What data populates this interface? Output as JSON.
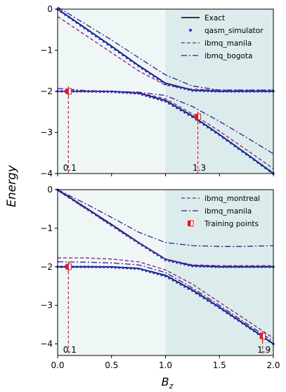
{
  "figure": {
    "ylabel": "Energy",
    "xlabel_base": "B",
    "xlabel_sub": "z"
  },
  "chart_data": [
    {
      "type": "line",
      "panel": "top",
      "xlim": [
        0.0,
        2.0
      ],
      "ylim": [
        -4,
        0
      ],
      "xticks": [
        "0.0",
        "0.5",
        "1.0",
        "1.5",
        "2.0"
      ],
      "yticks": [
        "0",
        "−1",
        "−2",
        "−3",
        "−4"
      ],
      "tick_values_y": [
        0,
        -1,
        -2,
        -3,
        -4
      ],
      "tick_values_x": [
        0.0,
        0.5,
        1.0,
        1.5,
        2.0
      ],
      "shaded_regions": [
        {
          "x": [
            0.0,
            1.0
          ],
          "color": "#eef6f6"
        },
        {
          "x": [
            1.0,
            2.0
          ],
          "color": "#dcecec"
        }
      ],
      "legend": {
        "placement": "top-right",
        "entries": [
          {
            "label": "Exact",
            "style": "solid",
            "color": "#000000"
          },
          {
            "label": "qasm_simulator",
            "style": "dots",
            "color": "#1f2fe0"
          },
          {
            "label": "ibmq_manila",
            "style": "dashed",
            "color": "#8b1a7a"
          },
          {
            "label": "ibmq_bogota",
            "style": "dashdot",
            "color": "#3b1c8c"
          }
        ]
      },
      "series": [
        {
          "name": "Exact",
          "style": "solid",
          "color": "#000000",
          "x": [
            0,
            0.25,
            0.5,
            0.75,
            1.0,
            1.25,
            1.5,
            1.75,
            2.0
          ],
          "upper": [
            0.0,
            -0.45,
            -0.9,
            -1.37,
            -1.8,
            -1.97,
            -2.0,
            -2.0,
            -2.0
          ],
          "lower": [
            -2.0,
            -2.0,
            -2.0,
            -2.04,
            -2.22,
            -2.6,
            -3.05,
            -3.52,
            -4.0
          ]
        },
        {
          "name": "qasm_simulator",
          "style": "dots",
          "color": "#1f2fe0",
          "x": [
            0,
            0.25,
            0.5,
            0.75,
            1.0,
            1.25,
            1.5,
            1.75,
            2.0
          ],
          "upper": [
            0.0,
            -0.46,
            -0.92,
            -1.38,
            -1.82,
            -1.98,
            -2.0,
            -2.0,
            -2.0
          ],
          "lower": [
            -2.0,
            -2.0,
            -2.01,
            -2.05,
            -2.24,
            -2.62,
            -3.06,
            -3.53,
            -4.0
          ]
        },
        {
          "name": "ibmq_manila",
          "style": "dashed",
          "color": "#8b1a7a",
          "x": [
            0,
            0.25,
            0.5,
            0.75,
            1.0,
            1.25,
            1.5,
            1.75,
            2.0
          ],
          "upper": [
            -0.18,
            -0.62,
            -1.06,
            -1.5,
            -1.85,
            -1.95,
            -1.97,
            -1.97,
            -1.97
          ],
          "lower": [
            -2.0,
            -2.0,
            -2.0,
            -2.03,
            -2.18,
            -2.55,
            -2.97,
            -3.42,
            -3.88
          ]
        },
        {
          "name": "ibmq_bogota",
          "style": "dashdot",
          "color": "#3b1c8c",
          "x": [
            0,
            0.25,
            0.5,
            0.75,
            1.0,
            1.25,
            1.5,
            1.75,
            2.0
          ],
          "upper": [
            0.05,
            -0.35,
            -0.75,
            -1.18,
            -1.6,
            -1.87,
            -1.97,
            -1.97,
            -1.97
          ],
          "lower": [
            -1.93,
            -1.98,
            -2.0,
            -2.02,
            -2.1,
            -2.37,
            -2.73,
            -3.12,
            -3.52
          ]
        }
      ],
      "training_points": [
        {
          "x": 0.1,
          "y": -2.0,
          "label": "0.1"
        },
        {
          "x": 1.3,
          "y": -2.62,
          "label": "1.3"
        }
      ]
    },
    {
      "type": "line",
      "panel": "bottom",
      "xlim": [
        0.0,
        2.0
      ],
      "ylim": [
        -4.3,
        0
      ],
      "xticks": [
        "0.0",
        "0.5",
        "1.0",
        "1.5",
        "2.0"
      ],
      "yticks": [
        "0",
        "−1",
        "−2",
        "−3",
        "−4"
      ],
      "tick_values_y": [
        0,
        -1,
        -2,
        -3,
        -4
      ],
      "tick_values_x": [
        0.0,
        0.5,
        1.0,
        1.5,
        2.0
      ],
      "shaded_regions": [
        {
          "x": [
            0.0,
            1.0
          ],
          "color": "#eef6f6"
        },
        {
          "x": [
            1.0,
            2.0
          ],
          "color": "#dcecec"
        }
      ],
      "legend": {
        "placement": "top-right",
        "entries": [
          {
            "label": "ibmq_montreal",
            "style": "dashed",
            "color": "#8b1a7a"
          },
          {
            "label": "ibmq_manila",
            "style": "dashdot",
            "color": "#3b1c8c"
          },
          {
            "label": "Training points",
            "style": "marker",
            "color": "#e8141a"
          }
        ]
      },
      "series": [
        {
          "name": "Exact",
          "style": "solid",
          "color": "#000000",
          "x": [
            0,
            0.25,
            0.5,
            0.75,
            1.0,
            1.25,
            1.5,
            1.75,
            2.0
          ],
          "upper": [
            0.0,
            -0.45,
            -0.9,
            -1.37,
            -1.8,
            -1.97,
            -2.0,
            -2.0,
            -2.0
          ],
          "lower": [
            -2.0,
            -2.0,
            -2.0,
            -2.04,
            -2.22,
            -2.6,
            -3.05,
            -3.52,
            -4.0
          ]
        },
        {
          "name": "qasm_simulator",
          "style": "dots",
          "color": "#1f2fe0",
          "x": [
            0,
            0.25,
            0.5,
            0.75,
            1.0,
            1.25,
            1.5,
            1.75,
            2.0
          ],
          "upper": [
            0.0,
            -0.46,
            -0.92,
            -1.38,
            -1.82,
            -1.98,
            -2.0,
            -2.0,
            -2.0
          ],
          "lower": [
            -2.0,
            -2.0,
            -2.01,
            -2.05,
            -2.24,
            -2.62,
            -3.06,
            -3.53,
            -4.0
          ]
        },
        {
          "name": "ibmq_montreal",
          "style": "dashed",
          "color": "#8b1a7a",
          "x": [
            0,
            0.25,
            0.5,
            0.75,
            1.0,
            1.25,
            1.5,
            1.75,
            2.0
          ],
          "upper": [
            -0.02,
            -0.47,
            -0.93,
            -1.38,
            -1.8,
            -1.95,
            -1.97,
            -1.97,
            -1.97
          ],
          "lower": [
            -1.77,
            -1.77,
            -1.8,
            -1.87,
            -2.08,
            -2.45,
            -2.92,
            -3.38,
            -3.85
          ]
        },
        {
          "name": "ibmq_manila",
          "style": "dashdot",
          "color": "#3b1c8c",
          "x": [
            0,
            0.25,
            0.5,
            0.75,
            1.0,
            1.25,
            1.5,
            1.75,
            2.0
          ],
          "upper": [
            0.0,
            -0.35,
            -0.72,
            -1.1,
            -1.37,
            -1.45,
            -1.47,
            -1.47,
            -1.45
          ],
          "lower": [
            -1.87,
            -1.88,
            -1.9,
            -1.95,
            -2.15,
            -2.55,
            -3.0,
            -3.47,
            -3.93
          ]
        }
      ],
      "training_points": [
        {
          "x": 0.1,
          "y": -2.0,
          "label": "0.1"
        },
        {
          "x": 1.9,
          "y": -3.8,
          "label": "1.9"
        }
      ]
    }
  ]
}
